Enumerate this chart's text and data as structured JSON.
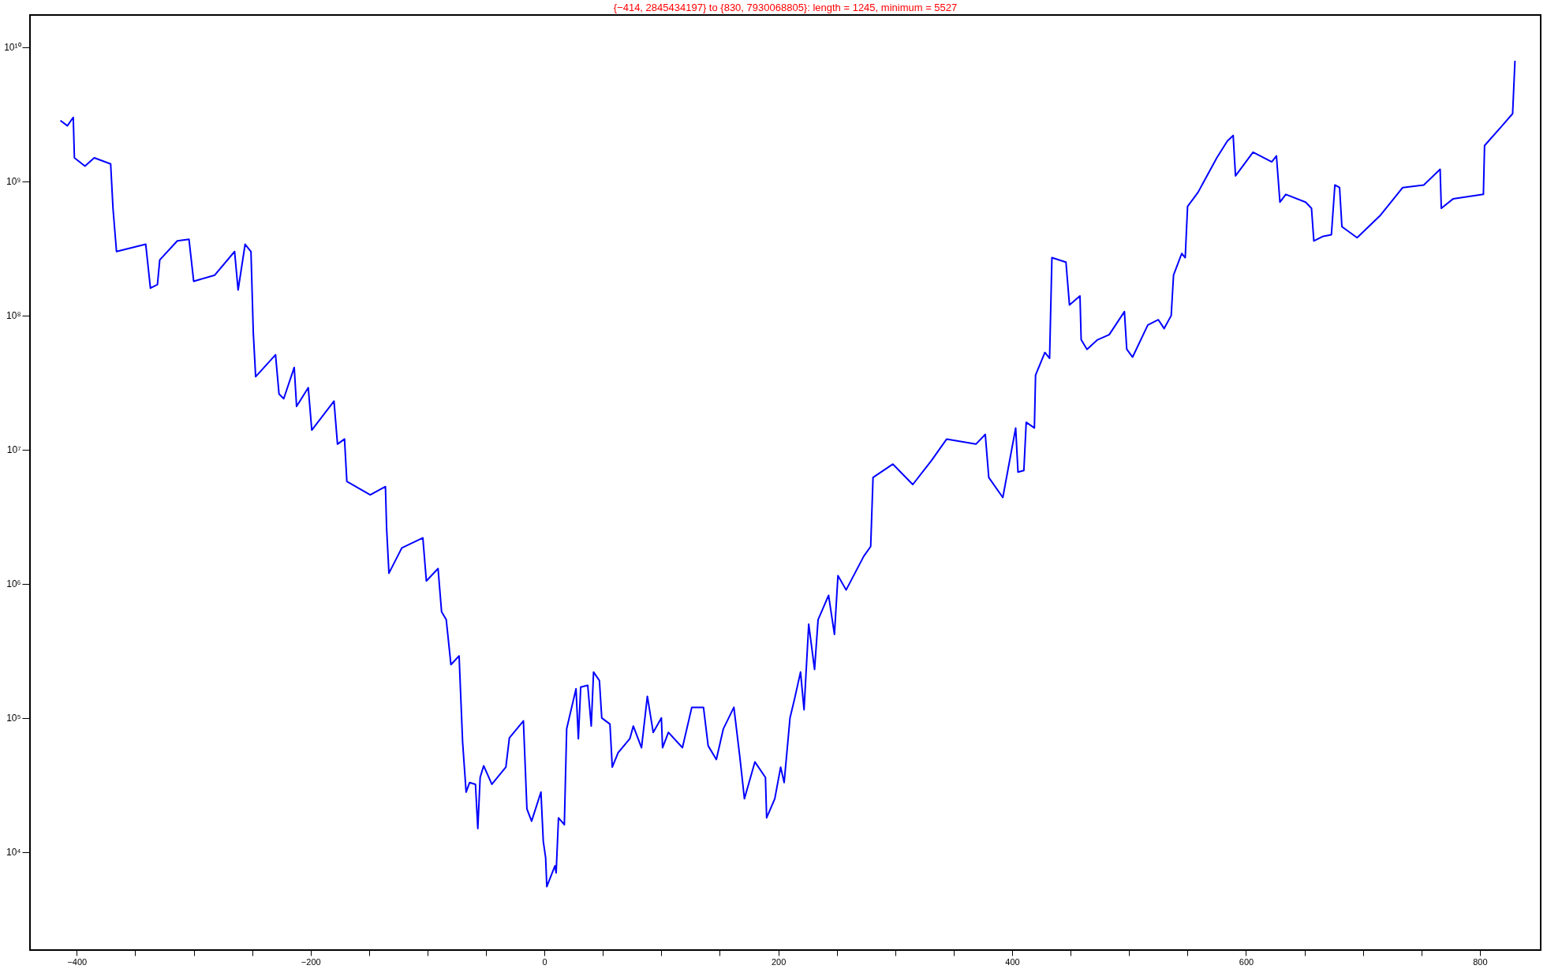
{
  "chart_data": {
    "type": "line",
    "title": "{−414, 2845434197} to {830, 7930068805}:      length = 1245, minimum = 5527",
    "log": "y",
    "grid": false,
    "marker": "none",
    "line_style": "solid",
    "xlim": [
      -440,
      852
    ],
    "ylim": [
      1860,
      17400000000
    ],
    "xticks": [
      {
        "value": -400,
        "label": "−400"
      },
      {
        "value": -350,
        "label": null
      },
      {
        "value": -300,
        "label": null
      },
      {
        "value": -250,
        "label": null
      },
      {
        "value": -200,
        "label": "−200"
      },
      {
        "value": -150,
        "label": null
      },
      {
        "value": -100,
        "label": null
      },
      {
        "value": -50,
        "label": null
      },
      0,
      {
        "value": 50,
        "label": null
      },
      {
        "value": 100,
        "label": null
      },
      {
        "value": 150,
        "label": null
      },
      200,
      {
        "value": 250,
        "label": null
      },
      {
        "value": 300,
        "label": null
      },
      {
        "value": 350,
        "label": null
      },
      400,
      {
        "value": 450,
        "label": null
      },
      {
        "value": 500,
        "label": null
      },
      {
        "value": 550,
        "label": null
      },
      600,
      {
        "value": 650,
        "label": null
      },
      {
        "value": 700,
        "label": null
      },
      {
        "value": 750,
        "label": null
      },
      800
    ],
    "yticks": [
      {
        "value": 10000,
        "label": "10⁴"
      },
      {
        "value": 100000,
        "label": "10⁵"
      },
      {
        "value": 1000000,
        "label": "10⁶"
      },
      {
        "value": 10000000,
        "label": "10⁷"
      },
      {
        "value": 100000000,
        "label": "10⁸"
      },
      {
        "value": 1000000000,
        "label": "10⁹"
      },
      {
        "value": 10000000000,
        "label": "10¹⁰"
      }
    ],
    "series": [
      {
        "color": "#0000ff",
        "x": [
          -414,
          -408,
          -403,
          -402,
          -393,
          -385,
          -371,
          -369,
          -366,
          -341,
          -337,
          -331,
          -329,
          -314,
          -304,
          -300,
          -282,
          -265,
          -262,
          -256,
          -251,
          -249,
          -247,
          -230,
          -227,
          -223,
          -214,
          -212,
          -202,
          -199,
          -180,
          -177,
          -171,
          -169,
          -149,
          -136,
          -135,
          -133,
          -122,
          -104,
          -101,
          -91,
          -88,
          -84,
          -80,
          -73,
          -70,
          -67,
          -64,
          -59,
          -57,
          -55,
          -52,
          -45,
          -33,
          -30,
          -18,
          -15,
          -11,
          -3,
          -1,
          1,
          2,
          9,
          10,
          12,
          17,
          19,
          27,
          29,
          31,
          37,
          40,
          42,
          47,
          49,
          56,
          58,
          63,
          73,
          76,
          83,
          88,
          93,
          100,
          101,
          106,
          118,
          126,
          136,
          140,
          147,
          153,
          162,
          167,
          171,
          180,
          189,
          190,
          197,
          202,
          205,
          210,
          214,
          219,
          222,
          226,
          231,
          234,
          243,
          248,
          251,
          258,
          273,
          279,
          281,
          298,
          315,
          331,
          344,
          369,
          377,
          380,
          392,
          403,
          405,
          410,
          412,
          419,
          420,
          428,
          432,
          434,
          446,
          449,
          458,
          459,
          464,
          473,
          483,
          496,
          498,
          503,
          516,
          525,
          530,
          536,
          538,
          545,
          548,
          550,
          559,
          575,
          584,
          589,
          591,
          606,
          622,
          626,
          629,
          634,
          651,
          656,
          658,
          666,
          673,
          676,
          680,
          682,
          695,
          715,
          734,
          752,
          766,
          767,
          777,
          803,
          804,
          819,
          828,
          830
        ],
        "values": [
          2845434197,
          2600000000,
          3000000000,
          1500000000,
          1300000000,
          1500000000,
          1350000000,
          630000000,
          300000000,
          340000000,
          160000000,
          170000000,
          260000000,
          360000000,
          370000000,
          180000000,
          200000000,
          300000000,
          155000000,
          340000000,
          300000000,
          74000000,
          35000000,
          51000000,
          26000000,
          24000000,
          41000000,
          21000000,
          29000000,
          14000000,
          23000000,
          11000000,
          12000000,
          5800000,
          4600000,
          5300000,
          2600000,
          1200000,
          1850000,
          2200000,
          1050000,
          1300000,
          620000,
          540000,
          250000,
          290000,
          66000,
          28000,
          33000,
          32000,
          15000,
          36000,
          44000,
          32000,
          43000,
          71000,
          95000,
          21000,
          17000,
          28000,
          12000,
          9100,
          5527,
          7900,
          7000,
          18000,
          16000,
          83000,
          165000,
          70000,
          170000,
          175000,
          87000,
          220000,
          190000,
          100000,
          90000,
          43000,
          55000,
          70000,
          87000,
          60000,
          145000,
          78000,
          100000,
          60000,
          78000,
          60000,
          120000,
          120000,
          62000,
          49000,
          83000,
          120000,
          52000,
          25000,
          47000,
          36000,
          18000,
          25000,
          43000,
          33000,
          100000,
          140000,
          220000,
          115000,
          500000,
          230000,
          540000,
          820000,
          420000,
          1150000,
          900000,
          1600000,
          1900000,
          6200000,
          7800000,
          5500000,
          8300000,
          12000000,
          11000000,
          13000000,
          6200000,
          4400000,
          14500000,
          6800000,
          7000000,
          16000000,
          14500000,
          36000000,
          53000000,
          48000000,
          270000000,
          250000000,
          120000000,
          140000000,
          66000000,
          56000000,
          66000000,
          72000000,
          107000000,
          56000000,
          49000000,
          85000000,
          93000000,
          80000000,
          100000000,
          200000000,
          290000000,
          270000000,
          650000000,
          830000000,
          1500000000,
          2000000000,
          2200000000,
          1100000000,
          1650000000,
          1400000000,
          1550000000,
          700000000,
          800000000,
          700000000,
          630000000,
          360000000,
          390000000,
          400000000,
          940000000,
          900000000,
          460000000,
          380000000,
          560000000,
          900000000,
          940000000,
          1230000000,
          630000000,
          740000000,
          800000000,
          1850000000,
          2600000000,
          3200000000,
          7930068805
        ]
      }
    ]
  }
}
